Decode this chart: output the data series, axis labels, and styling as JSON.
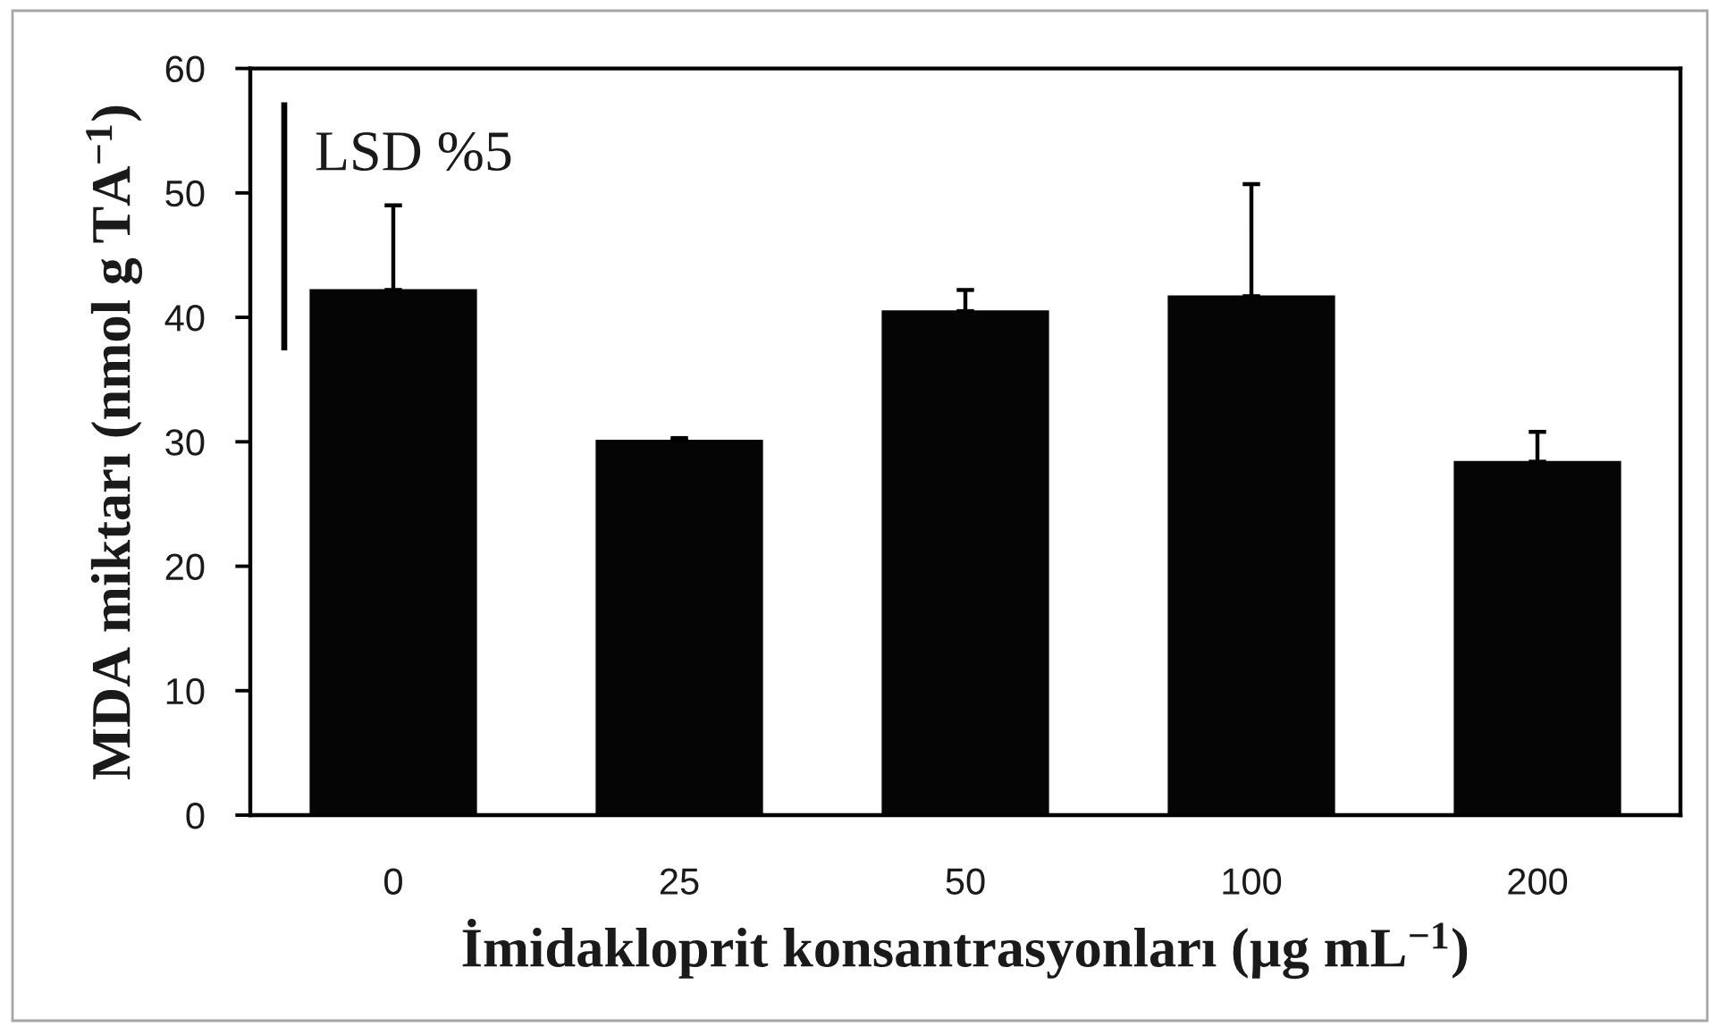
{
  "chart_data": {
    "type": "bar",
    "xlabel": "İmidakloprit konsantrasyonları (µg mL$^{−1}$)",
    "ylabel": "MDA miktarı (nmol g TA$^{−1}$)",
    "categories": [
      "0",
      "25",
      "50",
      "100",
      "200"
    ],
    "values": [
      42.2,
      30.1,
      40.5,
      41.7,
      28.4
    ],
    "color": "#050505",
    "errors": [
      [
        42.2,
        49.0
      ],
      [
        30.1,
        30.3
      ],
      [
        40.5,
        42.2
      ],
      [
        41.7,
        50.7
      ],
      [
        28.4,
        30.8
      ]
    ],
    "annotations": [
      "LSD %5"
    ],
    "ylim": [
      0,
      60
    ],
    "yticks": [
      0,
      10,
      20,
      30,
      40,
      50,
      60
    ],
    "grid": false
  }
}
